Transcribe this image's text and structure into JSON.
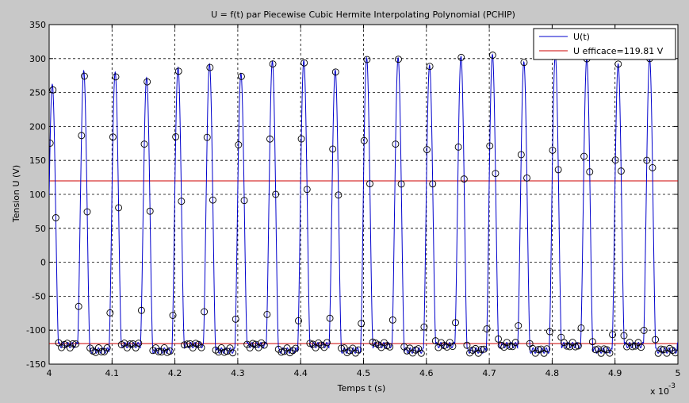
{
  "chart_data": {
    "type": "line",
    "title": "U = f(t) par Piecewise Cubic Hermite Interpolating Polynomial (PCHIP)",
    "xlabel": "Temps t (s)",
    "ylabel": "Tension U (V)",
    "x_multiplier_label": "x 10",
    "x_multiplier_exponent": "-3",
    "xlim": [
      4.0,
      5.0
    ],
    "ylim": [
      -150,
      350
    ],
    "x_ticks": [
      "4",
      "4.1",
      "4.2",
      "4.3",
      "4.4",
      "4.5",
      "4.6",
      "4.7",
      "4.8",
      "4.9",
      "5"
    ],
    "y_ticks": [
      "-150",
      "-100",
      "-50",
      "0",
      "50",
      "100",
      "150",
      "200",
      "250",
      "300",
      "350"
    ],
    "grid": true,
    "legend_position": "top-right",
    "colors": {
      "signal": "#0000cc",
      "rms": "#cc0000",
      "markers": "#000000",
      "axes_bg": "#ffffff",
      "figure_bg": "#c8c8c8"
    },
    "waveform": {
      "period_x1e3": 0.04995,
      "low_plateau": [
        -122,
        -130
      ],
      "peaks": [
        {
          "t": 4.005,
          "v": 262
        },
        {
          "t": 4.055,
          "v": 282
        },
        {
          "t": 4.105,
          "v": 280
        },
        {
          "t": 4.155,
          "v": 272
        },
        {
          "t": 4.205,
          "v": 287
        },
        {
          "t": 4.255,
          "v": 292
        },
        {
          "t": 4.305,
          "v": 278
        },
        {
          "t": 4.355,
          "v": 296
        },
        {
          "t": 4.405,
          "v": 297
        },
        {
          "t": 4.455,
          "v": 283
        },
        {
          "t": 4.505,
          "v": 301
        },
        {
          "t": 4.555,
          "v": 301
        },
        {
          "t": 4.605,
          "v": 290
        },
        {
          "t": 4.655,
          "v": 303
        },
        {
          "t": 4.705,
          "v": 306
        },
        {
          "t": 4.755,
          "v": 295
        },
        {
          "t": 4.805,
          "v": 305
        },
        {
          "t": 4.855,
          "v": 300
        },
        {
          "t": 4.905,
          "v": 292
        },
        {
          "t": 4.955,
          "v": 300
        }
      ]
    },
    "series": [
      {
        "name": "U(t)",
        "style": "line+circles"
      },
      {
        "name": "U efficace=119.81 V",
        "style": "hline",
        "values": [
          119.81,
          -119.81
        ]
      }
    ]
  }
}
